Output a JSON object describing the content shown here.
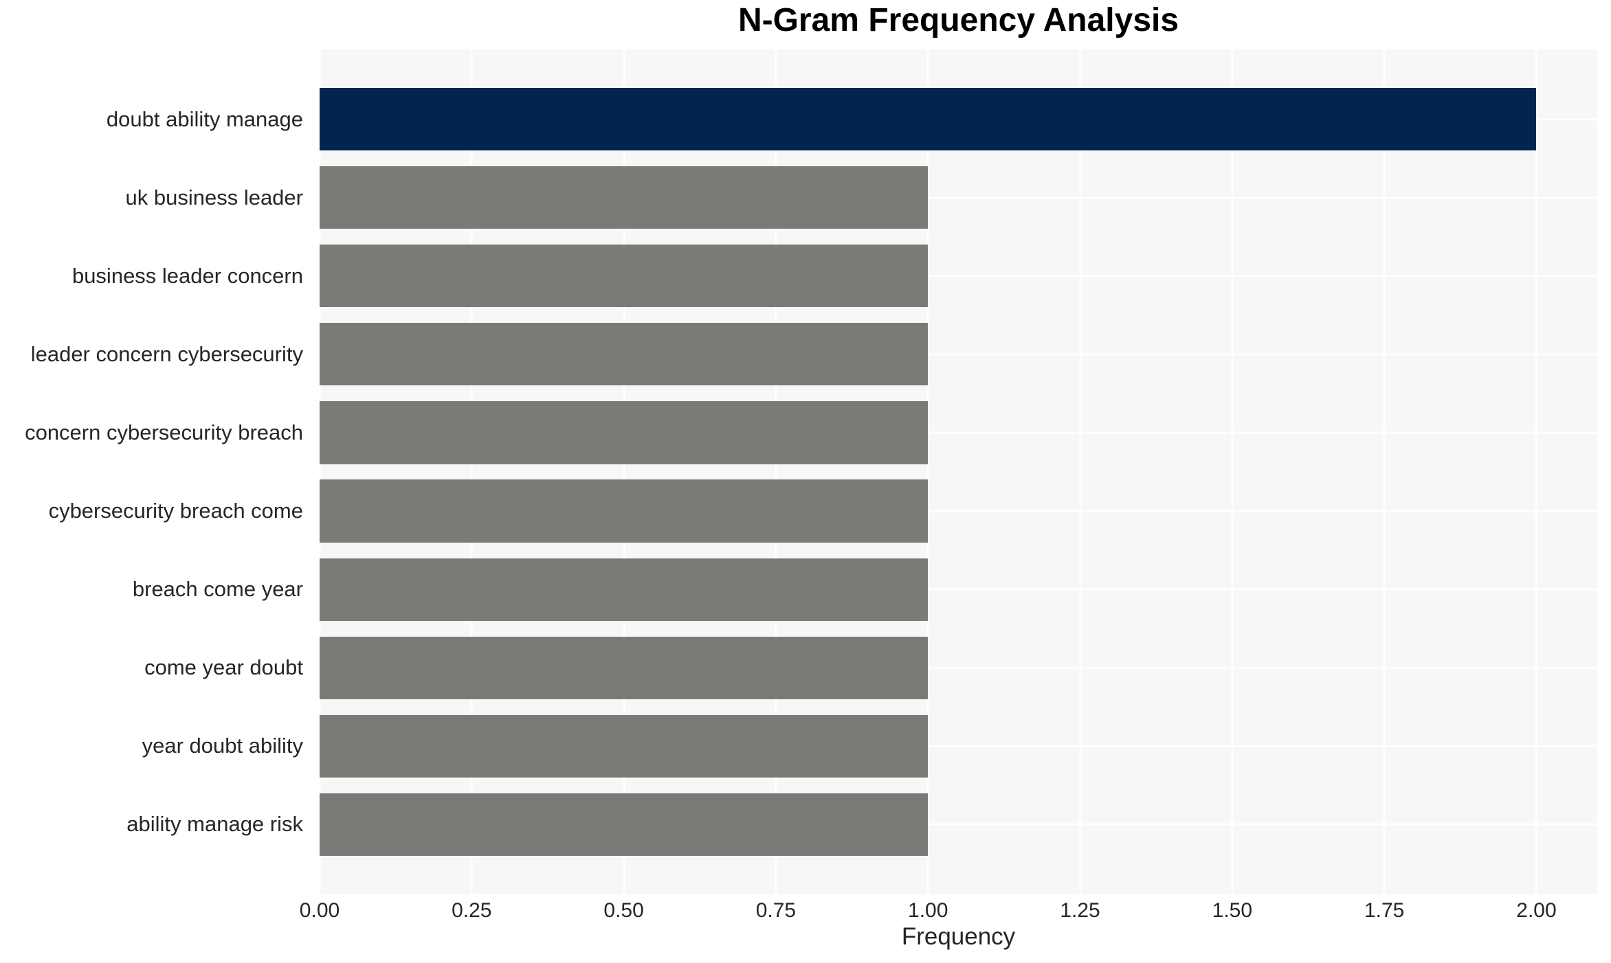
{
  "chart_data": {
    "type": "bar",
    "orientation": "horizontal",
    "title": "N-Gram Frequency Analysis",
    "xlabel": "Frequency",
    "ylabel": "",
    "categories": [
      "doubt ability manage",
      "uk business leader",
      "business leader concern",
      "leader concern cybersecurity",
      "concern cybersecurity breach",
      "cybersecurity breach come",
      "breach come year",
      "come year doubt",
      "year doubt ability",
      "ability manage risk"
    ],
    "values": [
      2,
      1,
      1,
      1,
      1,
      1,
      1,
      1,
      1,
      1
    ],
    "bar_colors": [
      "#02254E",
      "#7B7A76",
      "#7B7A76",
      "#7B7A76",
      "#7B7A76",
      "#7B7A76",
      "#7B7A76",
      "#7B7A76",
      "#7B7A76",
      "#7B7A76"
    ],
    "highlight_color": "#02254E",
    "default_bar_color": "#7B7A76",
    "x_ticks": [
      "0.00",
      "0.25",
      "0.50",
      "0.75",
      "1.00",
      "1.25",
      "1.50",
      "1.75",
      "2.00"
    ],
    "x_range": [
      0,
      2.1
    ],
    "grid": true,
    "grid_color": "#FFFFFF",
    "plot_background": "#F7F7F7",
    "title_color": "#000000",
    "tick_label_color": "#262626",
    "legend": "none"
  }
}
